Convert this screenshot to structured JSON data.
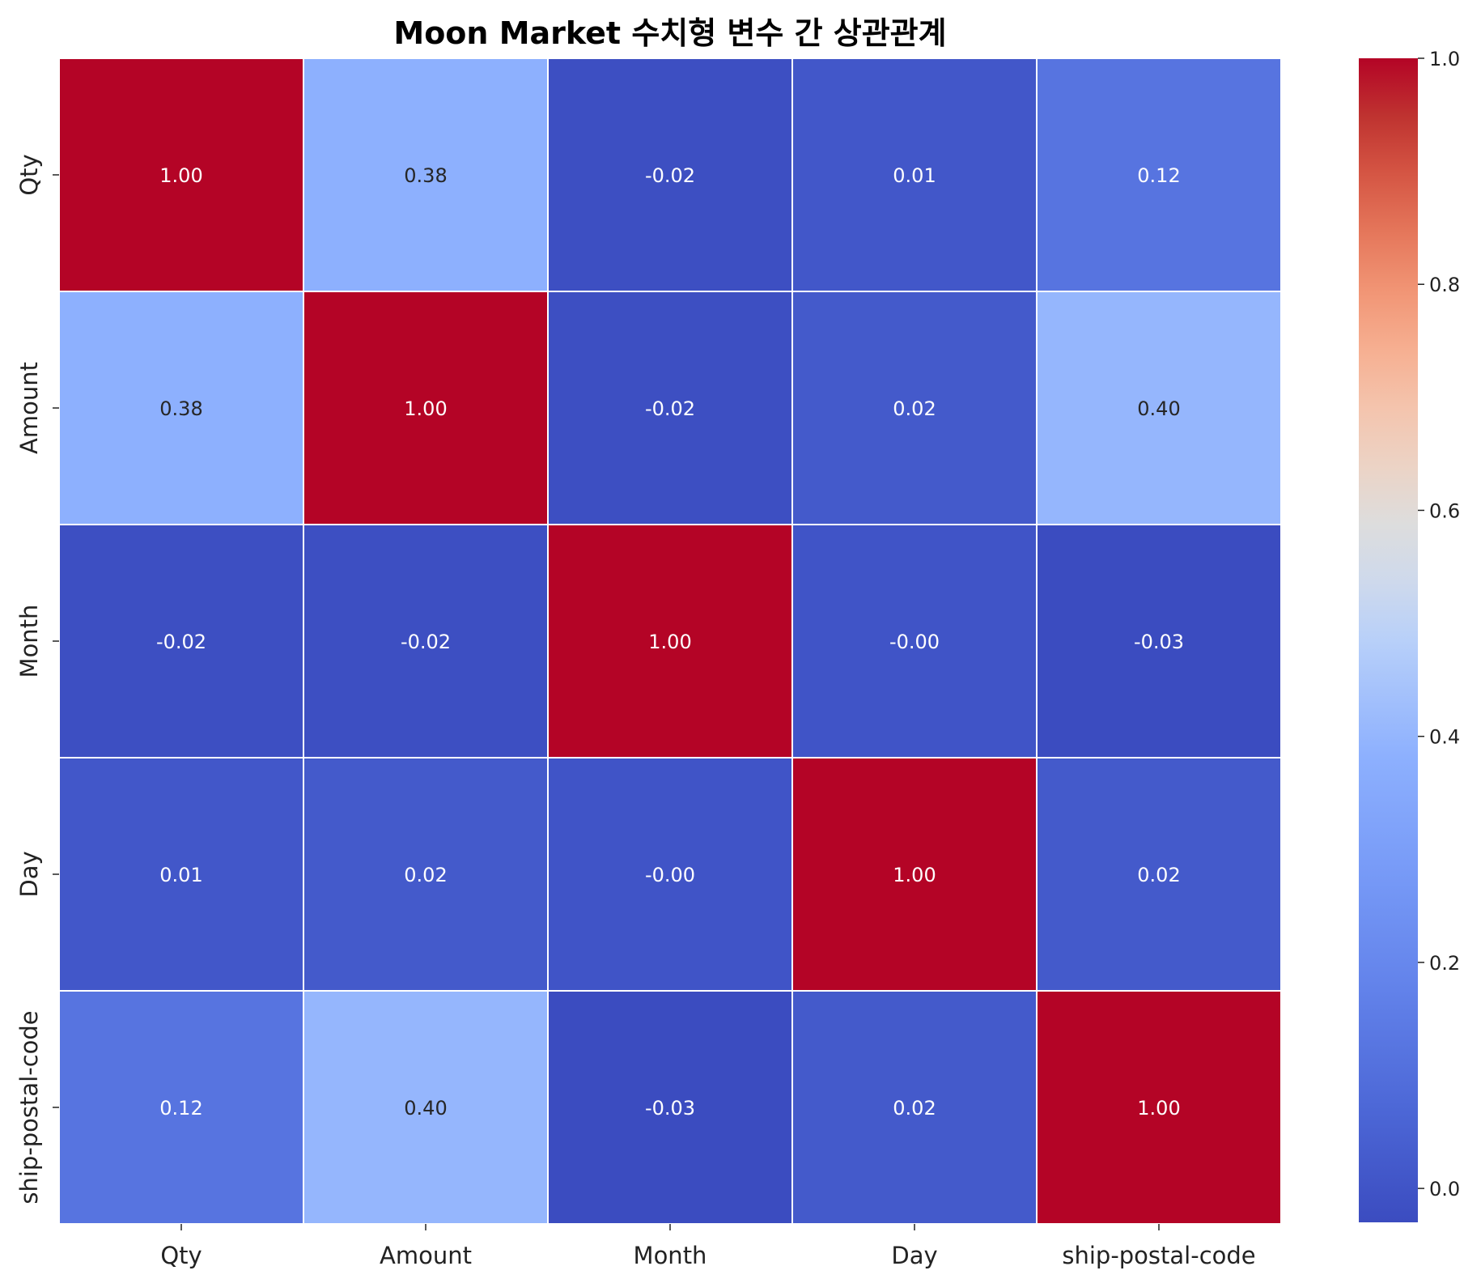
{
  "chart_data": {
    "type": "heatmap",
    "title": "Moon Market 수치형 변수 간 상관관계",
    "x_labels": [
      "Qty",
      "Amount",
      "Month",
      "Day",
      "ship-postal-code"
    ],
    "y_labels": [
      "Qty",
      "Amount",
      "Month",
      "Day",
      "ship-postal-code"
    ],
    "values": [
      [
        1.0,
        0.38,
        -0.02,
        0.01,
        0.12
      ],
      [
        0.38,
        1.0,
        -0.02,
        0.02,
        0.4
      ],
      [
        -0.02,
        -0.02,
        1.0,
        -0.0,
        -0.03
      ],
      [
        0.01,
        0.02,
        -0.0,
        1.0,
        0.02
      ],
      [
        0.12,
        0.4,
        -0.03,
        0.02,
        1.0
      ]
    ],
    "value_format": "0.00",
    "colormap": "coolwarm",
    "colorbar": {
      "range": [
        -0.03,
        1.0
      ],
      "ticks": [
        "0.0",
        "0.2",
        "0.4",
        "0.6",
        "0.8",
        "1.0"
      ],
      "tick_values": [
        0.0,
        0.2,
        0.4,
        0.6,
        0.8,
        1.0
      ]
    },
    "grid_line_color": "#ffffff"
  }
}
